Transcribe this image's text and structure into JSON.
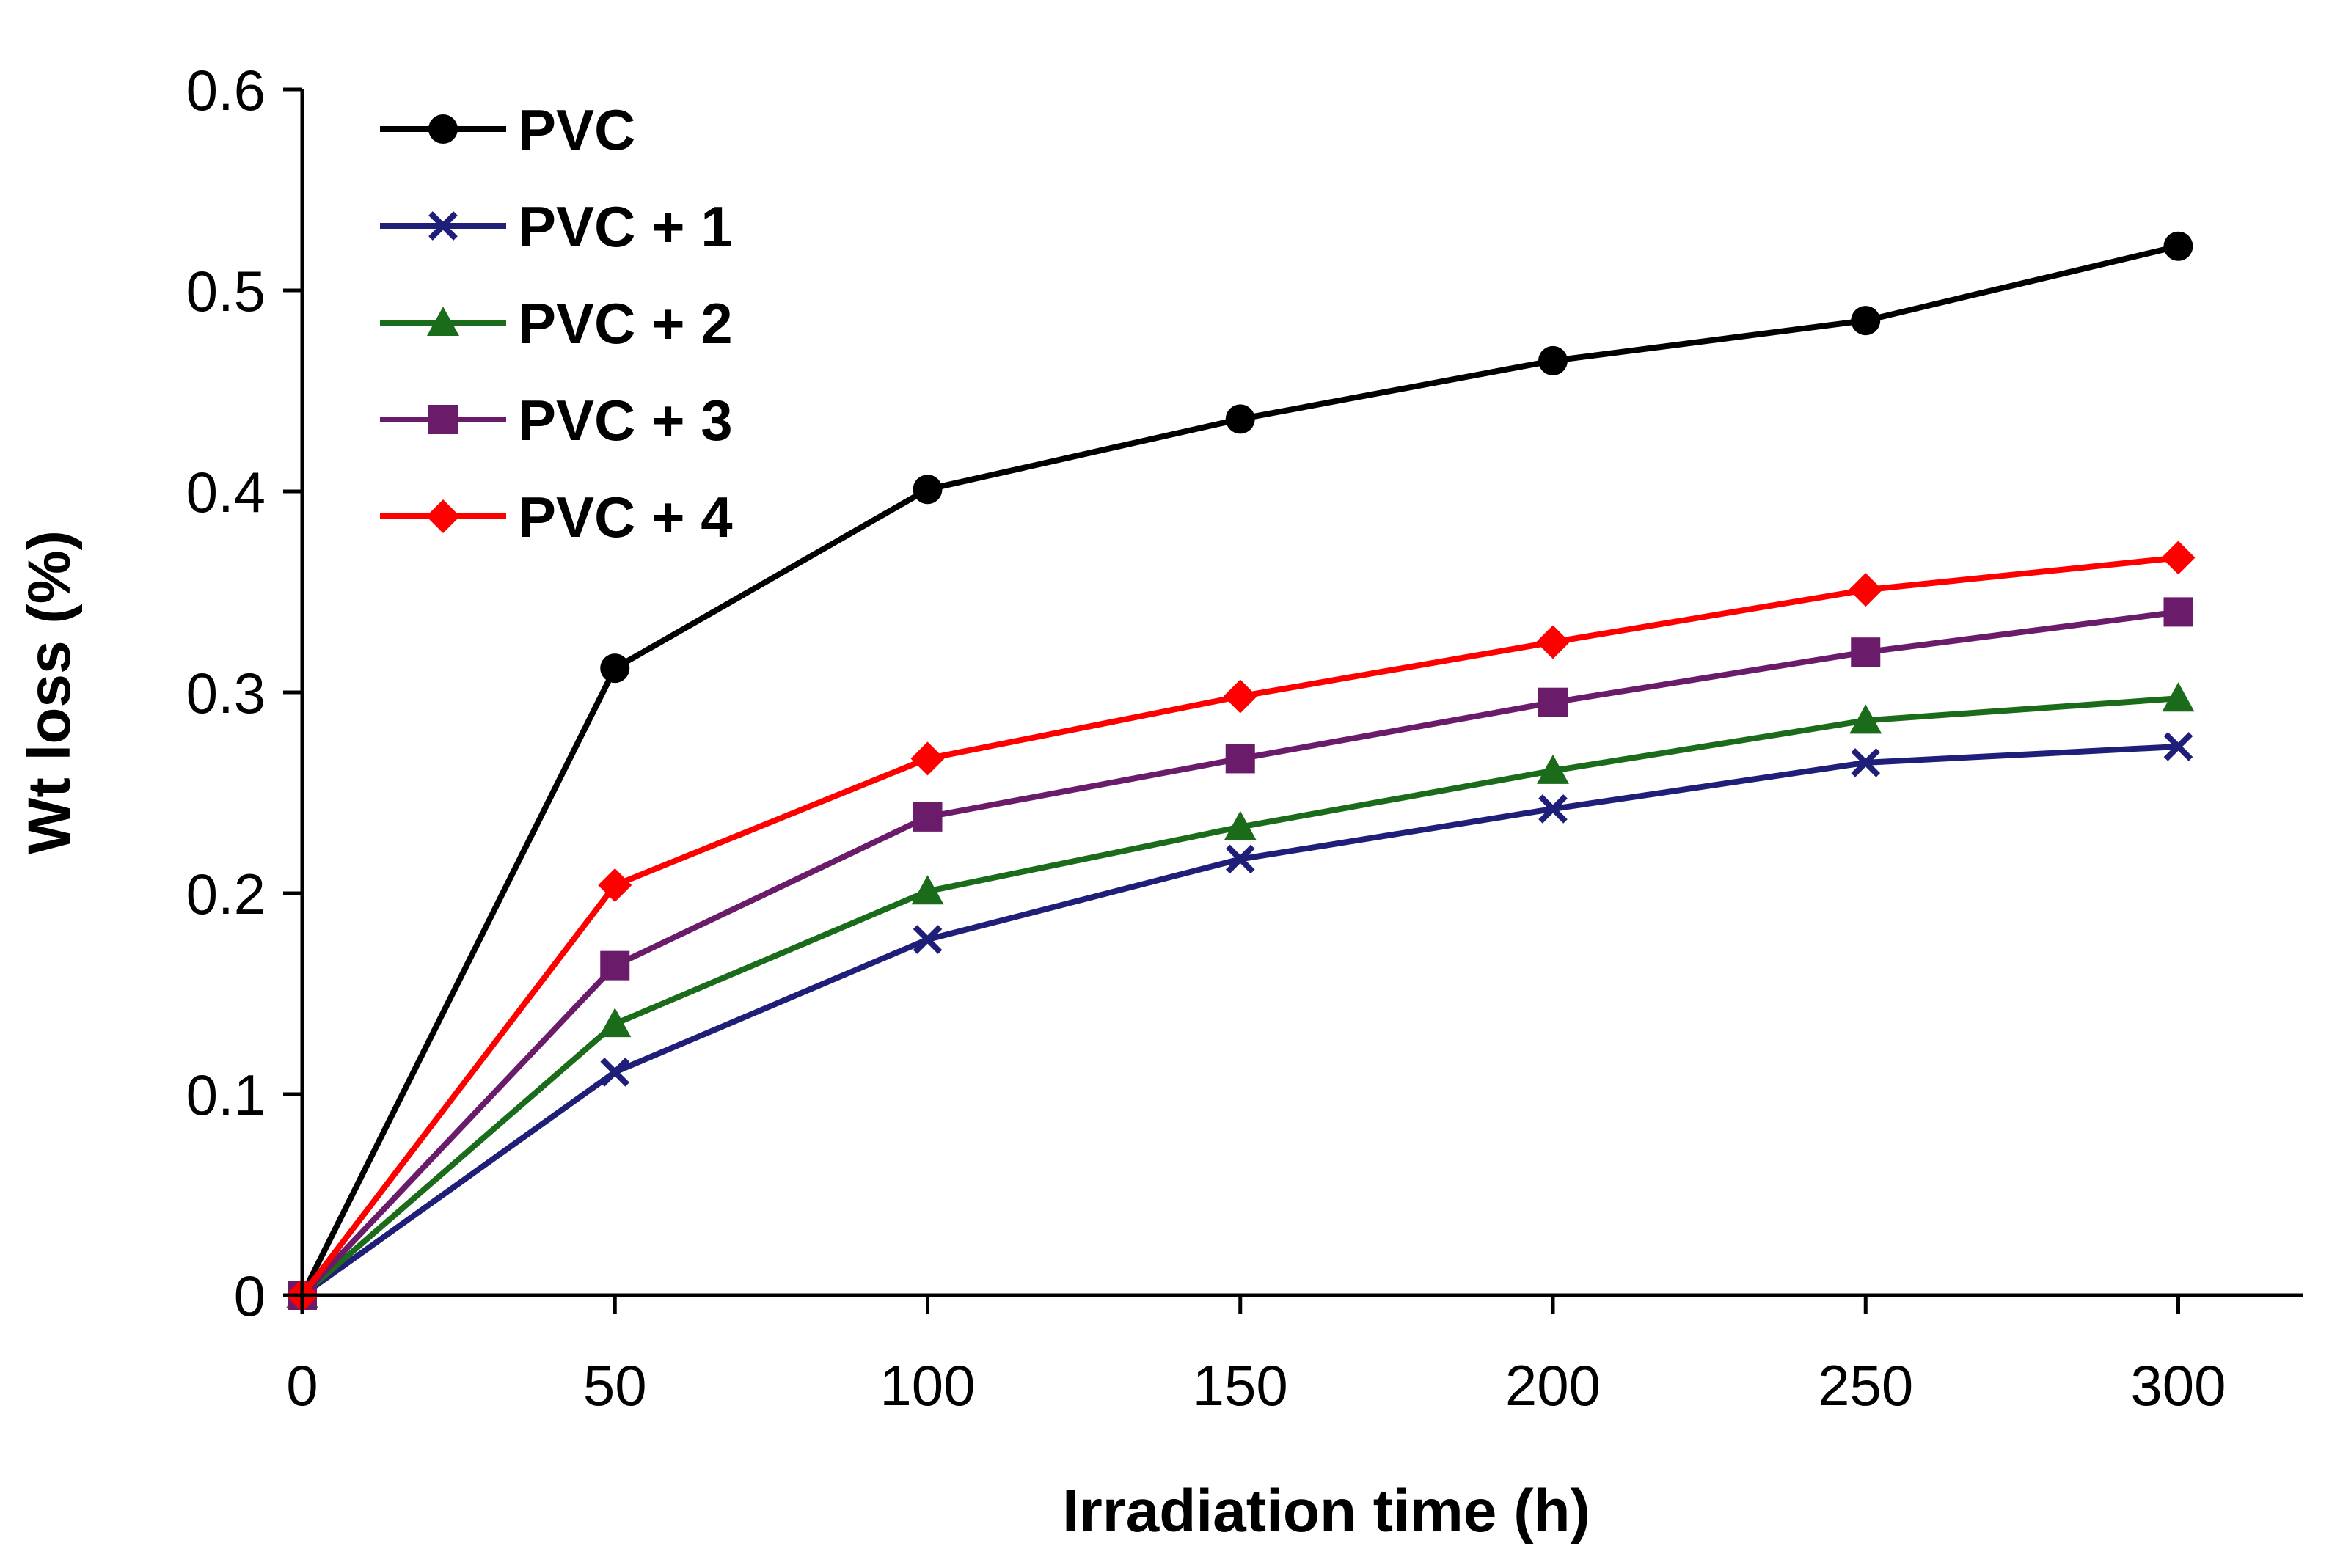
{
  "chart_data": {
    "type": "line",
    "title": "",
    "xlabel": "Irradiation time (h)",
    "ylabel": "Wt loss (%)",
    "x": [
      0,
      50,
      100,
      150,
      200,
      250,
      300
    ],
    "xlim": [
      0,
      320
    ],
    "ylim": [
      0,
      0.6
    ],
    "xticks": [
      0,
      50,
      100,
      150,
      200,
      250,
      300
    ],
    "yticks": [
      0,
      0.1,
      0.2,
      0.3,
      0.4,
      0.5,
      0.6
    ],
    "ytick_labels": [
      "0",
      "0.1",
      "0.2",
      "0.3",
      "0.4",
      "0.5",
      "0.6"
    ],
    "grid": false,
    "legend_position": "top-left",
    "series": [
      {
        "name": "PVC",
        "color": "#000000",
        "marker": "circle",
        "values": [
          0,
          0.312,
          0.401,
          0.436,
          0.465,
          0.485,
          0.522
        ]
      },
      {
        "name": "PVC + 1",
        "color": "#1f1f7a",
        "marker": "x",
        "values": [
          0,
          0.111,
          0.177,
          0.217,
          0.242,
          0.265,
          0.273
        ]
      },
      {
        "name": "PVC + 2",
        "color": "#1a6b1a",
        "marker": "triangle",
        "values": [
          0,
          0.135,
          0.201,
          0.233,
          0.261,
          0.286,
          0.297
        ]
      },
      {
        "name": "PVC + 3",
        "color": "#6a1b6a",
        "marker": "square",
        "values": [
          0,
          0.164,
          0.238,
          0.267,
          0.295,
          0.32,
          0.34
        ]
      },
      {
        "name": "PVC + 4",
        "color": "#ff0000",
        "marker": "diamond",
        "values": [
          0,
          0.204,
          0.267,
          0.298,
          0.325,
          0.351,
          0.367
        ]
      }
    ]
  }
}
